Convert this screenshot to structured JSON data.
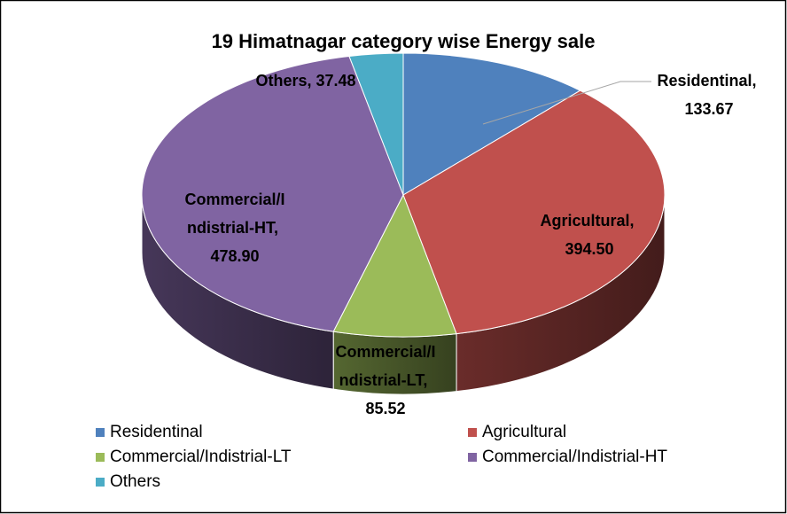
{
  "chart_data": {
    "type": "pie3d",
    "title": "19 Himatnagar category wise Energy sale",
    "categories": [
      "Residentinal",
      "Agricultural",
      "Commercial/Indistrial-LT",
      "Commercial/Indistrial-HT",
      "Others"
    ],
    "values": [
      133.67,
      394.5,
      85.52,
      478.9,
      37.48
    ],
    "value_labels": [
      "Residentinal, 133.67",
      "Agricultural, 394.50",
      "Commercial/Indistrial-LT, 85.52",
      "Commercial/Indistrial-HT, 478.90",
      "Others, 37.48"
    ],
    "colors": [
      "#4f81bd",
      "#c0504d",
      "#9bbb59",
      "#8064a2",
      "#4bacc6"
    ],
    "legend": "bottom"
  }
}
